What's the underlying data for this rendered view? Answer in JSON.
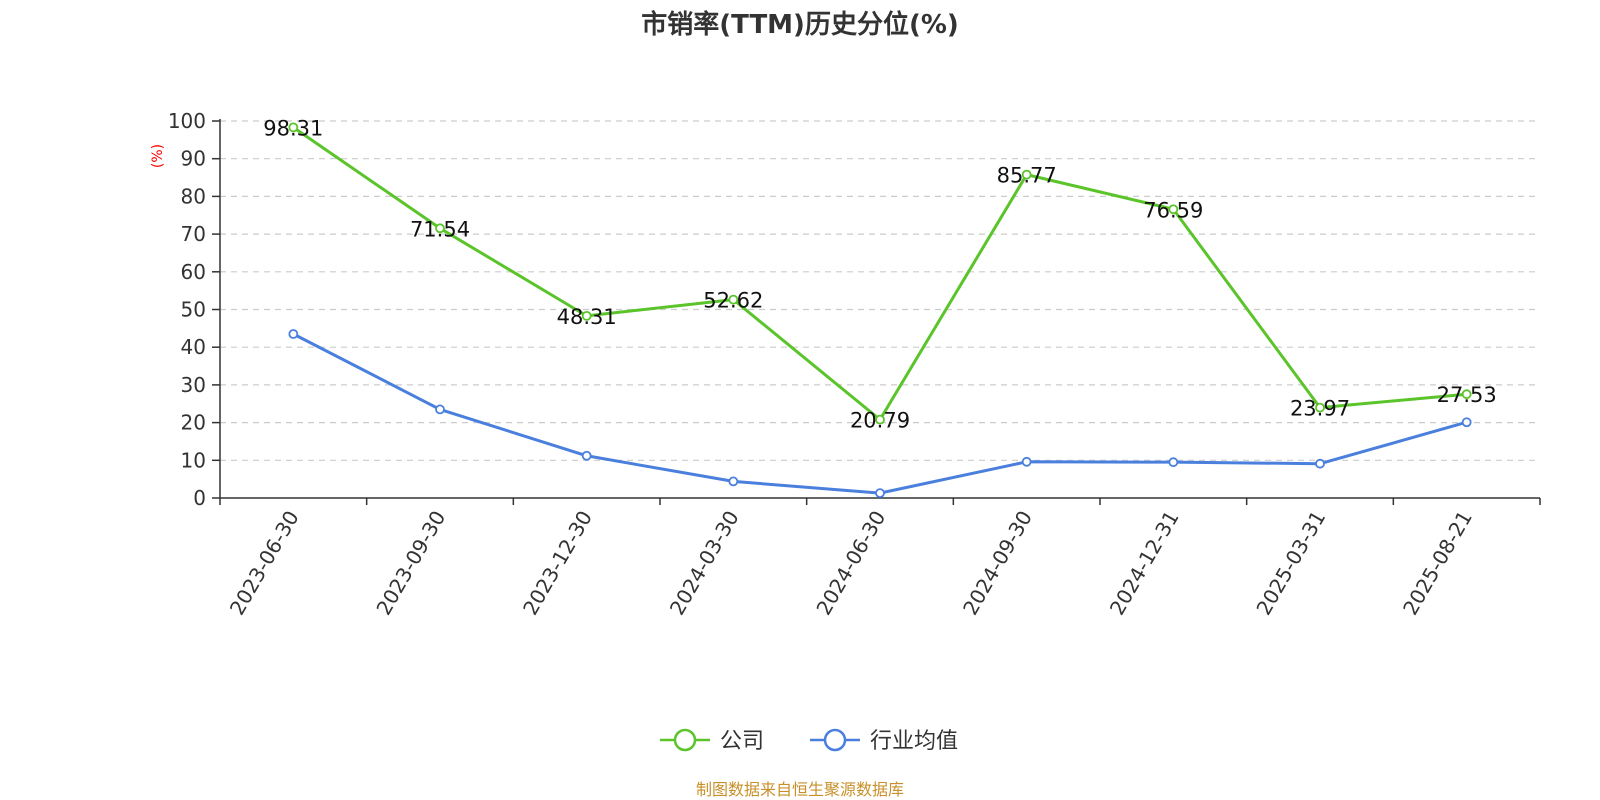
{
  "chart_data": {
    "type": "line",
    "title": "市销率(TTM)历史分位(%)",
    "ylabel": "(%)",
    "xlabel": "",
    "categories": [
      "2023-06-30",
      "2023-09-30",
      "2023-12-30",
      "2024-03-30",
      "2024-06-30",
      "2024-09-30",
      "2024-12-31",
      "2025-03-31",
      "2025-08-21"
    ],
    "yticks": [
      "0",
      "10",
      "20",
      "30",
      "40",
      "50",
      "60",
      "70",
      "80",
      "90",
      "100"
    ],
    "ylim": [
      0,
      100
    ],
    "grid": true,
    "legend_position": "bottom-center",
    "series": [
      {
        "name": "公司",
        "color": "#5ac42a",
        "values": [
          98.31,
          71.54,
          48.31,
          52.62,
          20.79,
          85.77,
          76.59,
          23.97,
          27.53
        ],
        "labels": [
          "98.31",
          "71.54",
          "48.31",
          "52.62",
          "20.79",
          "85.77",
          "76.59",
          "23.97",
          "27.53"
        ]
      },
      {
        "name": "行业均值",
        "color": "#4a7fdd",
        "values": [
          43.5,
          23.5,
          11.2,
          4.4,
          1.3,
          9.6,
          9.5,
          9.1,
          20.1
        ]
      }
    ]
  },
  "footer": {
    "source": "制图数据来自恒生聚源数据库"
  }
}
